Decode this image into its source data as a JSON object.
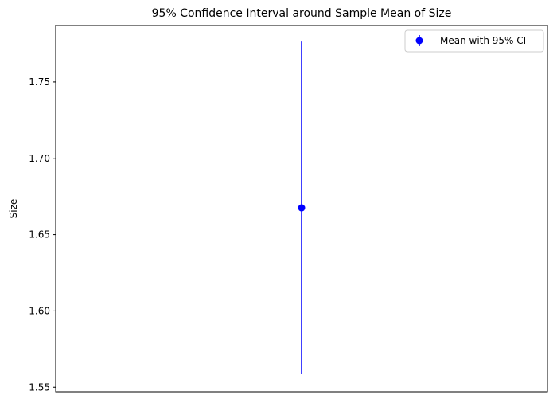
{
  "chart_data": {
    "type": "errorbar",
    "title": "95% Confidence Interval around Sample Mean of Size",
    "xlabel": "",
    "ylabel": "Size",
    "ylim": [
      1.547,
      1.787
    ],
    "y_ticks": [
      1.55,
      1.6,
      1.65,
      1.7,
      1.75
    ],
    "y_tick_labels": [
      "1.55",
      "1.60",
      "1.65",
      "1.70",
      "1.75"
    ],
    "x_ticks_visible": false,
    "grid": false,
    "legend_position": "top-right",
    "series": [
      {
        "name": "Mean with 95% CI",
        "color": "#0000ff",
        "mean": 1.6675,
        "ci_lower": 1.5585,
        "ci_upper": 1.7765
      }
    ]
  }
}
